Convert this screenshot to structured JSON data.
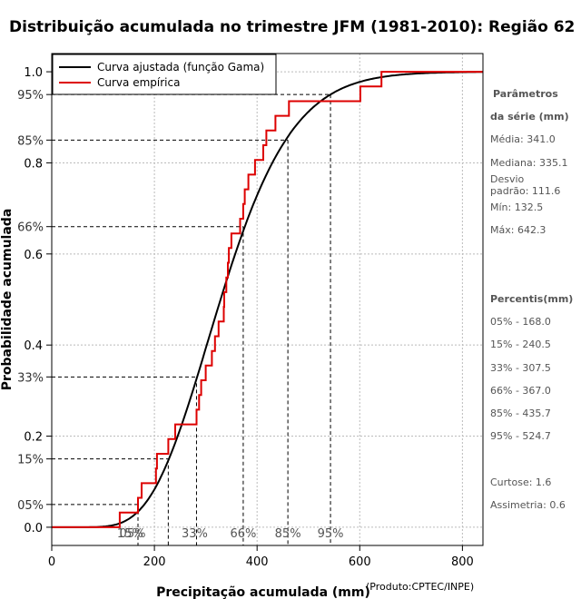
{
  "chart_data": {
    "type": "line",
    "title": "Distribuição acumulada no trimestre JFM (1981-2010): Região 62",
    "xlabel": "Precipitação acumulada (mm)",
    "ylabel": "Probabilidade acumulada",
    "xlim": [
      0,
      840
    ],
    "ylim": [
      -0.04,
      1.04
    ],
    "x_ticks": [
      "0",
      "200",
      "400",
      "600",
      "800"
    ],
    "y_ticks": [
      {
        "value": 0.0,
        "label": "0.0"
      },
      {
        "value": 0.2,
        "label": "0.2"
      },
      {
        "value": 0.4,
        "label": "0.4"
      },
      {
        "value": 0.6,
        "label": "0.6"
      },
      {
        "value": 0.8,
        "label": "0.8"
      },
      {
        "value": 1.0,
        "label": "1.0"
      }
    ],
    "y_pct_ticks": [
      {
        "value": 0.05,
        "label": "05%"
      },
      {
        "value": 0.15,
        "label": "15%"
      },
      {
        "value": 0.33,
        "label": "33%"
      },
      {
        "value": 0.66,
        "label": "66%"
      },
      {
        "value": 0.85,
        "label": "85%"
      },
      {
        "value": 0.95,
        "label": "95%"
      }
    ],
    "grid": true,
    "legend_position": "top-left",
    "legend": [
      {
        "name": "Curva ajustada (função Gama)",
        "color": "#000000"
      },
      {
        "name": "Curva empírica",
        "color": "#dd0000"
      }
    ],
    "fitted_gamma": {
      "mean": 341.0,
      "sd": 111.6
    },
    "empirical_x": [
      132.5,
      168.0,
      175.0,
      203.0,
      205.0,
      227.0,
      240.5,
      282.0,
      287.0,
      291.0,
      300.0,
      312.0,
      318.0,
      325.0,
      335.1,
      336.0,
      340.0,
      343.0,
      345.0,
      350.0,
      367.0,
      373.0,
      376.0,
      383.0,
      396.0,
      412.0,
      418.0,
      435.7,
      462.0,
      601.0,
      642.3
    ],
    "percentile_markers": [
      {
        "label": "05%",
        "p": 0.05,
        "x": 168.0
      },
      {
        "label": "15%",
        "p": 0.15,
        "x": 227.0
      },
      {
        "label": "33%",
        "p": 0.33,
        "x": 282.0
      },
      {
        "label": "66%",
        "p": 0.66,
        "x": 373.0
      },
      {
        "label": "85%",
        "p": 0.85,
        "x": 460.0
      },
      {
        "label": "95%",
        "p": 0.95,
        "x": 543.0
      }
    ]
  },
  "side_panel": {
    "params_title_1": "Parâmetros",
    "params_title_2": "da série (mm)",
    "media": "Média: 341.0",
    "mediana": "Mediana: 335.1",
    "desvio_1": "Desvio",
    "desvio_2": "padrão: 111.6",
    "min": "Mín: 132.5",
    "max": "Máx: 642.3",
    "percentis_title": "Percentis(mm)",
    "p05": "05% - 168.0",
    "p15": "15% - 240.5",
    "p33": "33% - 307.5",
    "p66": "66% - 367.0",
    "p85": "85% - 435.7",
    "p95": "95% - 524.7",
    "curtose": "Curtose: 1.6",
    "assimetria": "Assimetria: 0.6"
  },
  "credit": "(Produto:CPTEC/INPE)",
  "colors": {
    "fitted": "#000000",
    "empirical": "#dd0000",
    "grid": "#bbbbbb",
    "guide": "#000000"
  }
}
